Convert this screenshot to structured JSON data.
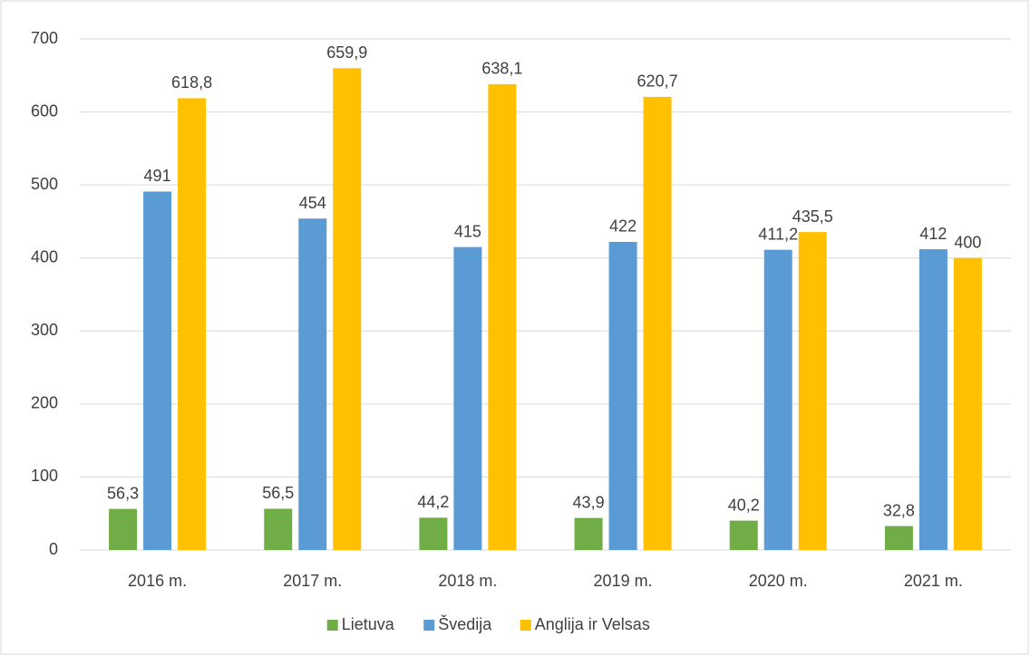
{
  "chart_data": {
    "type": "bar",
    "categories": [
      "2016 m.",
      "2017 m.",
      "2018 m.",
      "2019 m.",
      "2020 m.",
      "2021 m."
    ],
    "series": [
      {
        "name": "Lietuva",
        "color": "#70ad47",
        "values": [
          56.3,
          56.5,
          44.2,
          43.9,
          40.2,
          32.8
        ],
        "value_labels": [
          "56,3",
          "56,5",
          "44,2",
          "43,9",
          "40,2",
          "32,8"
        ]
      },
      {
        "name": "Švedija",
        "color": "#5b9bd5",
        "values": [
          491,
          454,
          415,
          422,
          411.2,
          412
        ],
        "value_labels": [
          "491",
          "454",
          "415",
          "422",
          "411,2",
          "412"
        ]
      },
      {
        "name": "Anglija ir Velsas",
        "color": "#ffc000",
        "values": [
          618.8,
          659.9,
          638.1,
          620.7,
          435.5,
          400
        ],
        "value_labels": [
          "618,8",
          "659,9",
          "638,1",
          "620,7",
          "435,5",
          "400"
        ]
      }
    ],
    "ylim": [
      0,
      700
    ],
    "yticks": [
      0,
      100,
      200,
      300,
      400,
      500,
      600,
      700
    ],
    "grid": true,
    "legend": "bottom"
  }
}
